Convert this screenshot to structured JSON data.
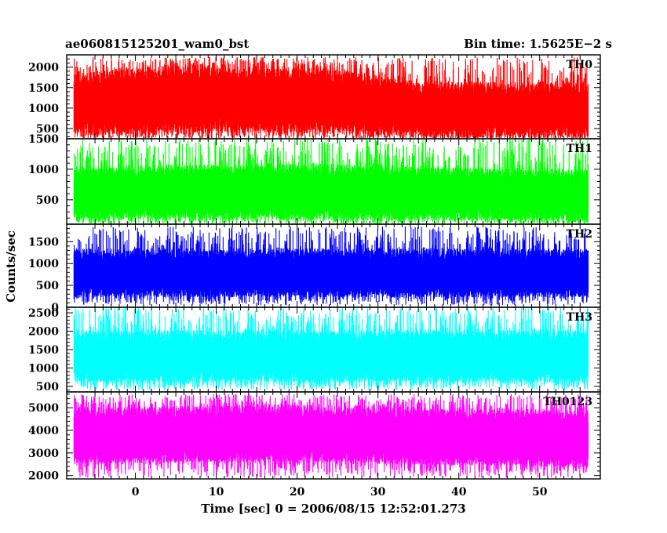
{
  "header": {
    "title_left": "ae060815125201_wam0_bst",
    "title_right": "Bin time: 1.5625E−2 s"
  },
  "chart_data": {
    "type": "line",
    "xlabel": "Time [sec] 0 = 2006/08/15 12:52:01.273",
    "ylabel": "Counts/sec",
    "xlim": [
      -8.5,
      57.5
    ],
    "x_data_range": [
      -7.6,
      56.0
    ],
    "x_ticks": [
      0,
      10,
      20,
      30,
      40,
      50
    ],
    "panels": [
      {
        "name": "TH0",
        "color": "#ff0000",
        "ylim": [
          250,
          2300
        ],
        "y_ticks": [
          500,
          1000,
          1500,
          2000
        ],
        "typical_range": [
          250,
          2250
        ],
        "baseline_profile": [
          {
            "x": -7.6,
            "low": 320,
            "high": 1900
          },
          {
            "x": 10.0,
            "low": 400,
            "high": 2100
          },
          {
            "x": 25.0,
            "low": 380,
            "high": 1950
          },
          {
            "x": 35.0,
            "low": 300,
            "high": 1650
          },
          {
            "x": 56.0,
            "low": 280,
            "high": 1650
          }
        ]
      },
      {
        "name": "TH1",
        "color": "#00ff00",
        "ylim": [
          100,
          1500
        ],
        "y_ticks": [
          500,
          1000,
          1500
        ],
        "typical_range": [
          100,
          1500
        ],
        "baseline_profile": [
          {
            "x": -7.6,
            "low": 180,
            "high": 1050
          },
          {
            "x": 20.0,
            "low": 170,
            "high": 1100
          },
          {
            "x": 56.0,
            "low": 150,
            "high": 1000
          }
        ]
      },
      {
        "name": "TH2",
        "color": "#0000ff",
        "ylim": [
          0,
          1900
        ],
        "y_ticks": [
          0,
          500,
          1000,
          1500
        ],
        "typical_range": [
          50,
          1850
        ],
        "baseline_profile": [
          {
            "x": -7.6,
            "low": 230,
            "high": 1350
          },
          {
            "x": 56.0,
            "low": 230,
            "high": 1350
          }
        ]
      },
      {
        "name": "TH3",
        "color": "#00ffff",
        "ylim": [
          350,
          2650
        ],
        "y_ticks": [
          500,
          1000,
          1500,
          2000,
          2500
        ],
        "typical_range": [
          400,
          2650
        ],
        "baseline_profile": [
          {
            "x": -7.6,
            "low": 600,
            "high": 2050
          },
          {
            "x": 56.0,
            "low": 600,
            "high": 2050
          }
        ]
      },
      {
        "name": "TH0123",
        "color": "#ff00ff",
        "ylim": [
          1850,
          5700
        ],
        "y_ticks": [
          2000,
          3000,
          4000,
          5000
        ],
        "typical_range": [
          1900,
          5600
        ],
        "baseline_profile": [
          {
            "x": -7.6,
            "low": 2500,
            "high": 5000
          },
          {
            "x": 15.0,
            "low": 2600,
            "high": 5200
          },
          {
            "x": 56.0,
            "low": 2350,
            "high": 4900
          }
        ]
      }
    ]
  }
}
